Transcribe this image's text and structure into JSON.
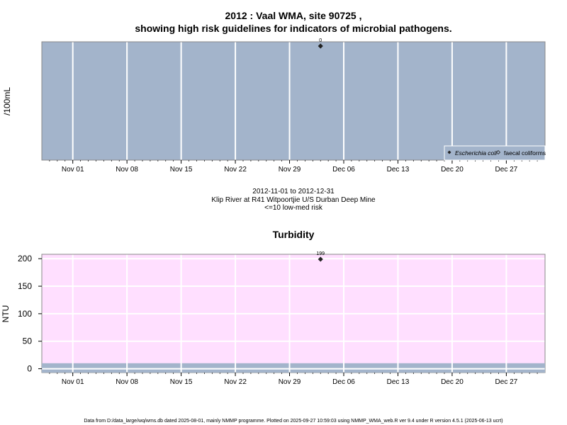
{
  "header": {
    "title_line1": "2012 : Vaal WMA, site 90725 ,",
    "title_line2": "showing high risk guidelines for indicators of microbial pathogens."
  },
  "caption": {
    "date_range": "2012-11-01 to 2012-12-31",
    "site_name": "Klip River at R41 Witpoortjie U/S Durban Deep Mine",
    "risk_note": "<=10 low-med risk"
  },
  "footer": {
    "note": "Data from D:/data_large/wq/wms.db dated 2025-08-01, mainly NMMP programme. Plotted on 2025-09-27 10:59:03 using NMMP_WMA_web.R ver 9.4 under R version 4.5.1 (2025-06-13 ucrt)"
  },
  "colors": {
    "panel_top": "#a3b4cb",
    "panel_bottom": "#ffdfff",
    "low_band": "#a3b4cb",
    "grid": "#ffffff",
    "point": "#222222"
  },
  "chart_data": [
    {
      "type": "scatter",
      "title": "",
      "ylabel": "/100mL",
      "x_ticks": [
        "Nov 01",
        "Nov 08",
        "Nov 15",
        "Nov 22",
        "Nov 29",
        "Dec 06",
        "Dec 13",
        "Dec 20",
        "Dec 27"
      ],
      "x_tick_dates": [
        "2012-11-01",
        "2012-11-08",
        "2012-11-15",
        "2012-11-22",
        "2012-11-29",
        "2012-12-06",
        "2012-12-13",
        "2012-12-20",
        "2012-12-27"
      ],
      "xlim": [
        "2012-10-28",
        "2013-01-01"
      ],
      "series": [
        {
          "name": "Escherichia coli",
          "marker": "filled-diamond",
          "points": [
            {
              "x": "2012-12-03",
              "y": 0,
              "label": "0"
            }
          ]
        },
        {
          "name": "faecal coliforms",
          "marker": "open-diamond",
          "points": []
        }
      ],
      "grid": true,
      "legend_position": "bottom-right"
    },
    {
      "type": "scatter",
      "title": "Turbidity",
      "ylabel": "NTU",
      "y_ticks": [
        0,
        50,
        100,
        150,
        200
      ],
      "ylim": [
        -7,
        208
      ],
      "low_band": [
        -7,
        10
      ],
      "x_ticks": [
        "Nov 01",
        "Nov 08",
        "Nov 15",
        "Nov 22",
        "Nov 29",
        "Dec 06",
        "Dec 13",
        "Dec 20",
        "Dec 27"
      ],
      "x_tick_dates": [
        "2012-11-01",
        "2012-11-08",
        "2012-11-15",
        "2012-11-22",
        "2012-11-29",
        "2012-12-06",
        "2012-12-13",
        "2012-12-20",
        "2012-12-27"
      ],
      "xlim": [
        "2012-10-28",
        "2013-01-01"
      ],
      "series": [
        {
          "name": "",
          "marker": "filled-diamond",
          "points": [
            {
              "x": "2012-12-03",
              "y": 199,
              "label": "199"
            }
          ]
        }
      ],
      "grid": true
    }
  ]
}
